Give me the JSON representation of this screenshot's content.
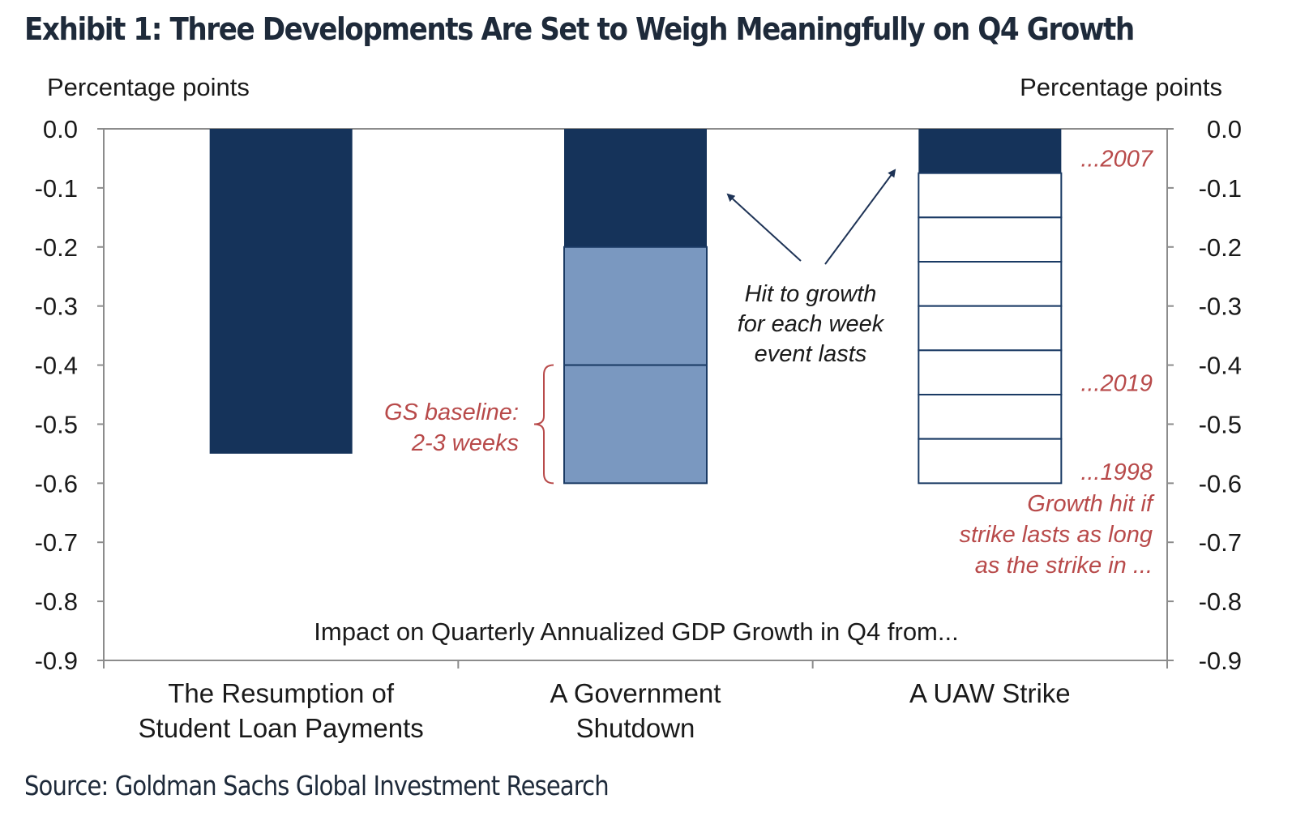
{
  "title": "Exhibit 1: Three Developments Are Set to Weigh Meaningfully on Q4 Growth",
  "source": "Source: Goldman Sachs Global Investment Research",
  "colors": {
    "dark_navy": "#15335a",
    "light_blue": "#7a98c0",
    "annotation_red": "#b84a4a",
    "outline": "#1a3a64"
  },
  "chart_data": {
    "type": "bar",
    "stacked": true,
    "subtitle": "Impact on Quarterly Annualized GDP Growth in Q4 from...",
    "ylabel_left": "Percentage points",
    "ylabel_right": "Percentage points",
    "ylim": [
      -0.9,
      0.0
    ],
    "yticks": [
      "0.0",
      "-0.1",
      "-0.2",
      "-0.3",
      "-0.4",
      "-0.5",
      "-0.6",
      "-0.7",
      "-0.8",
      "-0.9"
    ],
    "ytick_values": [
      0.0,
      -0.1,
      -0.2,
      -0.3,
      -0.4,
      -0.5,
      -0.6,
      -0.7,
      -0.8,
      -0.9
    ],
    "categories": [
      [
        "The Resumption of",
        "Student Loan Payments"
      ],
      [
        "A Government",
        "Shutdown"
      ],
      [
        "A UAW Strike"
      ]
    ],
    "bars": [
      {
        "category": 0,
        "segments": [
          {
            "from": 0.0,
            "to": -0.55,
            "style": "dark"
          }
        ]
      },
      {
        "category": 1,
        "segments": [
          {
            "from": 0.0,
            "to": -0.2,
            "style": "dark"
          },
          {
            "from": -0.2,
            "to": -0.4,
            "style": "light"
          },
          {
            "from": -0.4,
            "to": -0.6,
            "style": "light"
          }
        ]
      },
      {
        "category": 2,
        "segments": [
          {
            "from": 0.0,
            "to": -0.075,
            "style": "dark"
          },
          {
            "from": -0.075,
            "to": -0.15,
            "style": "empty"
          },
          {
            "from": -0.15,
            "to": -0.225,
            "style": "empty"
          },
          {
            "from": -0.225,
            "to": -0.3,
            "style": "empty"
          },
          {
            "from": -0.3,
            "to": -0.375,
            "style": "empty"
          },
          {
            "from": -0.375,
            "to": -0.45,
            "style": "empty"
          },
          {
            "from": -0.45,
            "to": -0.525,
            "style": "empty"
          },
          {
            "from": -0.525,
            "to": -0.6,
            "style": "empty"
          }
        ]
      }
    ],
    "annotations": {
      "hit_text": [
        "Hit to growth",
        "for each week",
        "event lasts"
      ],
      "baseline_text": [
        "GS baseline:",
        "2-3 weeks"
      ],
      "baseline_range": [
        -0.4,
        -0.6
      ],
      "year_labels": [
        {
          "label": "...2007",
          "y": -0.05
        },
        {
          "label": "...2019",
          "y": -0.43
        },
        {
          "label": "...1998",
          "y": -0.58
        }
      ],
      "strike_note": [
        "Growth hit if",
        "strike lasts as long",
        "as the strike in ..."
      ]
    }
  }
}
